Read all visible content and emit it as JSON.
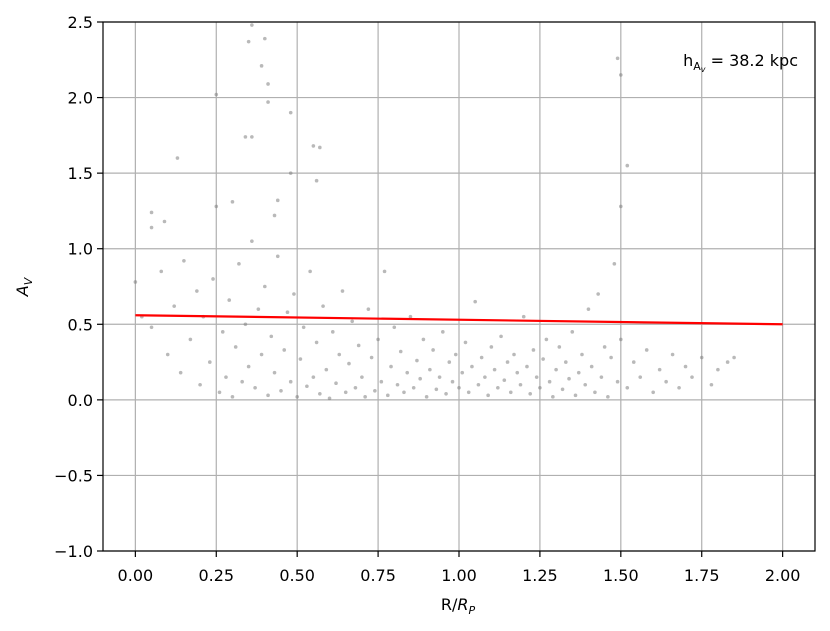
{
  "chart_data": {
    "type": "scatter",
    "xlabel": {
      "text": "R/",
      "italic": "R",
      "sub": "P"
    },
    "ylabel": {
      "italic": "A",
      "sub": "V"
    },
    "annotation": {
      "text": "h",
      "sub": "A",
      "subsub": "v",
      "rest": " = 38.2 kpc"
    },
    "xlim": [
      -0.1,
      2.1
    ],
    "ylim": [
      -1.0,
      2.5
    ],
    "xticks": [
      {
        "value": 0,
        "label": "0.00"
      },
      {
        "value": 0.25,
        "label": "0.25"
      },
      {
        "value": 0.5,
        "label": "0.50"
      },
      {
        "value": 0.75,
        "label": "0.75"
      },
      {
        "value": 1,
        "label": "1.00"
      },
      {
        "value": 1.25,
        "label": "1.25"
      },
      {
        "value": 1.5,
        "label": "1.50"
      },
      {
        "value": 1.75,
        "label": "1.75"
      },
      {
        "value": 2,
        "label": "2.00"
      }
    ],
    "yticks": [
      {
        "value": -1,
        "label": "−1.0"
      },
      {
        "value": -0.5,
        "label": "−0.5"
      },
      {
        "value": 0,
        "label": "0.0"
      },
      {
        "value": 0.5,
        "label": "0.5"
      },
      {
        "value": 1,
        "label": "1.0"
      },
      {
        "value": 1.5,
        "label": "1.5"
      },
      {
        "value": 2,
        "label": "2.0"
      },
      {
        "value": 2.5,
        "label": "2.5"
      }
    ],
    "grid": true,
    "series": [
      {
        "type": "scatter",
        "color": "#808080",
        "x": [
          0.02,
          0.05,
          0.08,
          0.1,
          0.12,
          0.14,
          0.15,
          0.17,
          0.19,
          0.2,
          0.21,
          0.23,
          0.24,
          0.26,
          0.27,
          0.28,
          0.29,
          0.3,
          0.31,
          0.32,
          0.33,
          0.34,
          0.35,
          0.36,
          0.37,
          0.38,
          0.39,
          0.4,
          0.41,
          0.42,
          0.43,
          0.44,
          0.45,
          0.46,
          0.47,
          0.48,
          0.49,
          0.5,
          0.51,
          0.52,
          0.53,
          0.54,
          0.55,
          0.56,
          0.57,
          0.58,
          0.59,
          0.6,
          0.61,
          0.62,
          0.63,
          0.64,
          0.65,
          0.66,
          0.67,
          0.68,
          0.69,
          0.7,
          0.71,
          0.72,
          0.73,
          0.74,
          0.75,
          0.76,
          0.77,
          0.78,
          0.79,
          0.8,
          0.81,
          0.82,
          0.83,
          0.84,
          0.85,
          0.86,
          0.87,
          0.88,
          0.89,
          0.9,
          0.91,
          0.92,
          0.93,
          0.94,
          0.95,
          0.96,
          0.97,
          0.98,
          0.99,
          1.0,
          1.01,
          1.02,
          1.03,
          1.04,
          1.05,
          1.06,
          1.07,
          1.08,
          1.09,
          1.1,
          1.11,
          1.12,
          1.13,
          1.14,
          1.15,
          1.16,
          1.17,
          1.18,
          1.19,
          1.2,
          1.21,
          1.22,
          1.23,
          1.24,
          1.25,
          1.26,
          1.27,
          1.28,
          1.29,
          1.3,
          1.31,
          1.32,
          1.33,
          1.34,
          1.35,
          1.36,
          1.37,
          1.38,
          1.39,
          1.4,
          1.41,
          1.42,
          1.43,
          1.44,
          1.45,
          1.46,
          1.47,
          1.48,
          1.49,
          1.5,
          1.52,
          1.54,
          1.56,
          1.58,
          1.6,
          1.62,
          1.64,
          1.66,
          1.68,
          1.7,
          1.72,
          1.75,
          1.78,
          1.8,
          1.83,
          1.85,
          0.36,
          0.4,
          0.35,
          0.39,
          0.41,
          0.25,
          0.41,
          0.48,
          0.36,
          0.34,
          0.55,
          0.57,
          0.13,
          1.49,
          1.5,
          1.52,
          1.5,
          0.56,
          0.48,
          0.05,
          0.0,
          0.05,
          0.09,
          0.25,
          0.3,
          0.44,
          0.43
        ],
        "values": [
          0.55,
          0.48,
          0.85,
          0.3,
          0.62,
          0.18,
          0.92,
          0.4,
          0.72,
          0.1,
          0.55,
          0.25,
          0.8,
          0.05,
          0.45,
          0.15,
          0.66,
          0.02,
          0.35,
          0.9,
          0.12,
          0.5,
          0.22,
          1.05,
          0.08,
          0.6,
          0.3,
          0.75,
          0.03,
          0.42,
          0.18,
          0.95,
          0.06,
          0.33,
          0.58,
          0.12,
          0.7,
          0.02,
          0.27,
          0.48,
          0.09,
          0.85,
          0.15,
          0.38,
          0.04,
          0.62,
          0.2,
          0.01,
          0.45,
          0.11,
          0.3,
          0.72,
          0.05,
          0.24,
          0.52,
          0.08,
          0.36,
          0.15,
          0.02,
          0.6,
          0.28,
          0.06,
          0.4,
          0.12,
          0.85,
          0.03,
          0.22,
          0.48,
          0.1,
          0.32,
          0.05,
          0.18,
          0.55,
          0.08,
          0.26,
          0.14,
          0.4,
          0.02,
          0.2,
          0.33,
          0.07,
          0.15,
          0.45,
          0.04,
          0.25,
          0.12,
          0.3,
          0.08,
          0.18,
          0.38,
          0.05,
          0.22,
          0.65,
          0.1,
          0.28,
          0.15,
          0.03,
          0.35,
          0.2,
          0.08,
          0.42,
          0.13,
          0.25,
          0.05,
          0.3,
          0.18,
          0.1,
          0.55,
          0.22,
          0.04,
          0.33,
          0.15,
          0.08,
          0.27,
          0.4,
          0.12,
          0.02,
          0.2,
          0.35,
          0.07,
          0.25,
          0.14,
          0.45,
          0.03,
          0.18,
          0.3,
          0.1,
          0.6,
          0.22,
          0.05,
          0.7,
          0.15,
          0.35,
          0.02,
          0.28,
          0.9,
          0.12,
          0.4,
          0.08,
          0.25,
          0.15,
          0.33,
          0.05,
          0.2,
          0.12,
          0.3,
          0.08,
          0.22,
          0.15,
          0.28,
          0.1,
          0.2,
          0.25,
          0.28,
          2.48,
          2.39,
          2.37,
          2.21,
          2.09,
          2.02,
          1.97,
          1.9,
          1.74,
          1.74,
          1.68,
          1.67,
          1.6,
          2.26,
          2.15,
          1.55,
          1.28,
          1.45,
          1.5,
          1.24,
          0.78,
          1.14,
          1.18,
          1.28,
          1.31,
          1.32,
          1.22
        ]
      },
      {
        "type": "line",
        "color": "#ff0000",
        "x": [
          0,
          2
        ],
        "values": [
          0.56,
          0.5
        ]
      }
    ]
  }
}
